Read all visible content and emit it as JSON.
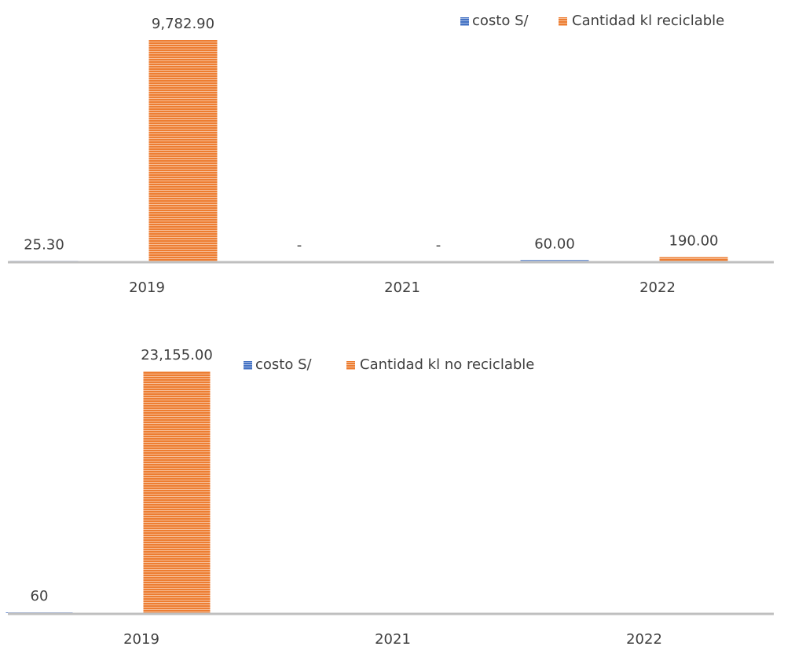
{
  "chart_data": [
    {
      "type": "bar",
      "categories": [
        "2019",
        "2021",
        "2022"
      ],
      "series": [
        {
          "name": "costo S/",
          "values": [
            25.3,
            0,
            60
          ],
          "labels": [
            "25.30",
            "-",
            "60.00"
          ],
          "color": "#4472C4"
        },
        {
          "name": "Cantidad kl reciclable",
          "values": [
            9782.9,
            0,
            190
          ],
          "labels": [
            "9,782.90",
            "-",
            "190.00"
          ],
          "color": "#ED7D31"
        }
      ],
      "legend": "top-right",
      "pattern": "horizontal-stripes",
      "axis_color": "#BFBFBF",
      "ylim": [
        0,
        9782.9
      ],
      "grid": false
    },
    {
      "type": "bar",
      "categories": [
        "2019",
        "2021",
        "2022"
      ],
      "series": [
        {
          "name": "costo S/",
          "values": [
            60,
            null,
            null
          ],
          "labels": [
            "60",
            "",
            ""
          ],
          "color": "#4472C4"
        },
        {
          "name": "Cantidad kl no reciclable",
          "values": [
            23155,
            null,
            null
          ],
          "labels": [
            "23,155.00",
            "",
            ""
          ],
          "color": "#ED7D31"
        }
      ],
      "legend": "top-center",
      "pattern": "horizontal-stripes",
      "axis_color": "#BFBFBF",
      "ylim": [
        0,
        23155
      ],
      "grid": false
    }
  ]
}
